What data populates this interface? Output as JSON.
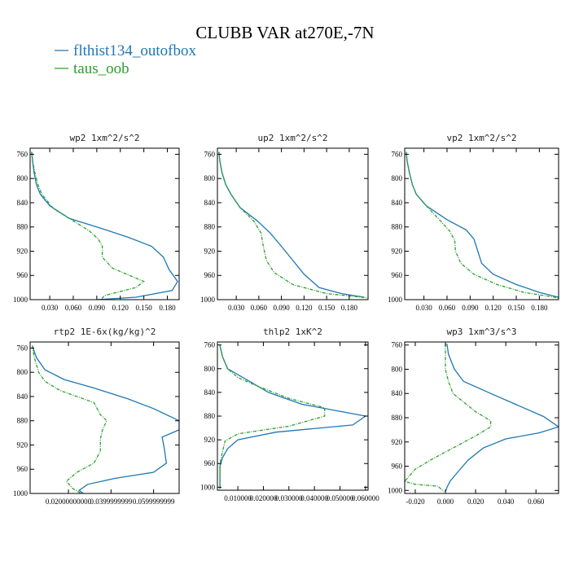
{
  "figure": {
    "title": "CLUBB VAR at270E,-7N",
    "legend": [
      {
        "label": "flthist134_outofbox",
        "color": "#1f77b4",
        "dash": "solid"
      },
      {
        "label": "taus_oob",
        "color": "#2ca02c",
        "dash": "dashed"
      }
    ]
  },
  "chart_data": [
    {
      "type": "line",
      "title": "wp2  1xm^2/s^2",
      "xlim": [
        0.005,
        0.195
      ],
      "ylim": [
        750,
        1000
      ],
      "yinvert": true,
      "xticks": [
        0.03,
        0.06,
        0.09,
        0.12,
        0.15,
        0.18
      ],
      "xtick_labels": [
        "0.030",
        "0.060",
        "0.090",
        "0.120",
        "0.150",
        "0.180"
      ],
      "yticks": [
        760,
        800,
        840,
        880,
        920,
        960,
        1000
      ],
      "ytick_labels": [
        "760",
        "800",
        "840",
        "880",
        "920",
        "960",
        "1000"
      ],
      "series": [
        {
          "name": "flthist134_outofbox",
          "color": "#1f77b4",
          "dash": "solid",
          "points": [
            [
              0.007,
              756
            ],
            [
              0.008,
              770
            ],
            [
              0.01,
              790
            ],
            [
              0.013,
              810
            ],
            [
              0.018,
              826
            ],
            [
              0.03,
              845
            ],
            [
              0.055,
              866
            ],
            [
              0.095,
              882
            ],
            [
              0.13,
              897
            ],
            [
              0.16,
              912
            ],
            [
              0.175,
              930
            ],
            [
              0.182,
              950
            ],
            [
              0.193,
              970
            ],
            [
              0.186,
              985
            ],
            [
              0.14,
              996
            ],
            [
              0.09,
              1000
            ]
          ]
        },
        {
          "name": "taus_oob",
          "color": "#2ca02c",
          "dash": "dashed",
          "points": [
            [
              0.007,
              756
            ],
            [
              0.008,
              770
            ],
            [
              0.011,
              790
            ],
            [
              0.015,
              810
            ],
            [
              0.02,
              826
            ],
            [
              0.035,
              850
            ],
            [
              0.06,
              870
            ],
            [
              0.08,
              886
            ],
            [
              0.092,
              900
            ],
            [
              0.097,
              912
            ],
            [
              0.097,
              930
            ],
            [
              0.11,
              948
            ],
            [
              0.15,
              970
            ],
            [
              0.14,
              980
            ],
            [
              0.1,
              993
            ],
            [
              0.095,
              1000
            ]
          ]
        }
      ]
    },
    {
      "type": "line",
      "title": "up2  1xm^2/s^2",
      "xlim": [
        0.005,
        0.205
      ],
      "ylim": [
        750,
        1000
      ],
      "yinvert": true,
      "xticks": [
        0.03,
        0.06,
        0.09,
        0.12,
        0.15,
        0.18
      ],
      "xtick_labels": [
        "0.030",
        "0.060",
        "0.090",
        "0.120",
        "0.150",
        "0.180"
      ],
      "yticks": [
        760,
        800,
        840,
        880,
        920,
        960,
        1000
      ],
      "ytick_labels": [
        "760",
        "800",
        "840",
        "880",
        "920",
        "960",
        "1000"
      ],
      "series": [
        {
          "name": "flthist134_outofbox",
          "color": "#1f77b4",
          "dash": "solid",
          "points": [
            [
              0.007,
              756
            ],
            [
              0.008,
              770
            ],
            [
              0.011,
              790
            ],
            [
              0.016,
              810
            ],
            [
              0.023,
              826
            ],
            [
              0.035,
              848
            ],
            [
              0.058,
              870
            ],
            [
              0.075,
              890
            ],
            [
              0.09,
              912
            ],
            [
              0.105,
              935
            ],
            [
              0.12,
              958
            ],
            [
              0.14,
              980
            ],
            [
              0.17,
              990
            ],
            [
              0.2,
              996
            ]
          ]
        },
        {
          "name": "taus_oob",
          "color": "#2ca02c",
          "dash": "dashed",
          "points": [
            [
              0.007,
              756
            ],
            [
              0.008,
              770
            ],
            [
              0.011,
              790
            ],
            [
              0.016,
              810
            ],
            [
              0.023,
              826
            ],
            [
              0.035,
              848
            ],
            [
              0.053,
              870
            ],
            [
              0.063,
              890
            ],
            [
              0.066,
              912
            ],
            [
              0.07,
              935
            ],
            [
              0.08,
              955
            ],
            [
              0.105,
              975
            ],
            [
              0.15,
              990
            ],
            [
              0.205,
              997
            ]
          ]
        }
      ]
    },
    {
      "type": "line",
      "title": "vp2  1xm^2/s^2",
      "xlim": [
        0.005,
        0.205
      ],
      "ylim": [
        750,
        1000
      ],
      "yinvert": true,
      "xticks": [
        0.03,
        0.06,
        0.09,
        0.12,
        0.15,
        0.18
      ],
      "xtick_labels": [
        "0.030",
        "0.060",
        "0.090",
        "0.120",
        "0.150",
        "0.180"
      ],
      "yticks": [
        760,
        800,
        840,
        880,
        920,
        960,
        1000
      ],
      "ytick_labels": [
        "760",
        "800",
        "840",
        "880",
        "920",
        "960",
        "1000"
      ],
      "series": [
        {
          "name": "flthist134_outofbox",
          "color": "#1f77b4",
          "dash": "solid",
          "points": [
            [
              0.007,
              756
            ],
            [
              0.008,
              770
            ],
            [
              0.011,
              790
            ],
            [
              0.015,
              810
            ],
            [
              0.02,
              826
            ],
            [
              0.033,
              845
            ],
            [
              0.06,
              868
            ],
            [
              0.085,
              885
            ],
            [
              0.095,
              900
            ],
            [
              0.1,
              920
            ],
            [
              0.105,
              940
            ],
            [
              0.12,
              958
            ],
            [
              0.15,
              975
            ],
            [
              0.18,
              988
            ],
            [
              0.205,
              996
            ]
          ]
        },
        {
          "name": "taus_oob",
          "color": "#2ca02c",
          "dash": "dashed",
          "points": [
            [
              0.007,
              756
            ],
            [
              0.008,
              770
            ],
            [
              0.011,
              790
            ],
            [
              0.015,
              810
            ],
            [
              0.02,
              826
            ],
            [
              0.033,
              845
            ],
            [
              0.05,
              868
            ],
            [
              0.063,
              886
            ],
            [
              0.07,
              902
            ],
            [
              0.071,
              920
            ],
            [
              0.078,
              940
            ],
            [
              0.095,
              958
            ],
            [
              0.125,
              975
            ],
            [
              0.16,
              988
            ],
            [
              0.205,
              997
            ]
          ]
        }
      ]
    },
    {
      "type": "line",
      "title": "rtp2  1E-6x(kg/kg)^2",
      "xlim": [
        0.002,
        0.072
      ],
      "ylim": [
        750,
        1000
      ],
      "yinvert": true,
      "xticks": [
        0.02,
        0.04,
        0.06
      ],
      "xtick_labels": [
        "0.02000000000",
        "0.0399999999",
        "0.0599999999"
      ],
      "yticks": [
        760,
        800,
        840,
        880,
        920,
        960,
        1000
      ],
      "ytick_labels": [
        "760",
        "800",
        "840",
        "880",
        "920",
        "960",
        "1000"
      ],
      "series": [
        {
          "name": "flthist134_outofbox",
          "color": "#1f77b4",
          "dash": "solid",
          "points": [
            [
              0.003,
              756
            ],
            [
              0.005,
              776
            ],
            [
              0.009,
              796
            ],
            [
              0.018,
              812
            ],
            [
              0.032,
              826
            ],
            [
              0.048,
              844
            ],
            [
              0.06,
              860
            ],
            [
              0.072,
              880
            ],
            [
              0.072,
              895
            ],
            [
              0.064,
              907
            ],
            [
              0.065,
              925
            ],
            [
              0.066,
              950
            ],
            [
              0.06,
              965
            ],
            [
              0.042,
              975
            ],
            [
              0.029,
              985
            ],
            [
              0.025,
              995
            ],
            [
              0.027,
              1000
            ]
          ]
        },
        {
          "name": "taus_oob",
          "color": "#2ca02c",
          "dash": "dashed",
          "points": [
            [
              0.003,
              756
            ],
            [
              0.004,
              776
            ],
            [
              0.006,
              800
            ],
            [
              0.009,
              815
            ],
            [
              0.016,
              830
            ],
            [
              0.032,
              850
            ],
            [
              0.035,
              870
            ],
            [
              0.038,
              880
            ],
            [
              0.036,
              895
            ],
            [
              0.035,
              910
            ],
            [
              0.035,
              930
            ],
            [
              0.032,
              950
            ],
            [
              0.024,
              965
            ],
            [
              0.019,
              980
            ],
            [
              0.022,
              992
            ],
            [
              0.026,
              1000
            ]
          ]
        }
      ]
    },
    {
      "type": "line",
      "title": "thlp2  1xK^2",
      "xlim": [
        0.002,
        0.061
      ],
      "ylim": [
        755,
        1005
      ],
      "yinvert": true,
      "xticks": [
        0.01,
        0.02,
        0.03,
        0.04,
        0.05,
        0.06
      ],
      "xtick_labels": [
        "0.010000",
        "0.020000",
        "0.030000",
        "0.040000",
        "0.050000",
        "0.060000"
      ],
      "yticks": [
        760,
        800,
        840,
        880,
        920,
        960,
        1000
      ],
      "ytick_labels": [
        "760",
        "800",
        "840",
        "880",
        "920",
        "960",
        "1000"
      ],
      "series": [
        {
          "name": "flthist134_outofbox",
          "color": "#1f77b4",
          "dash": "solid",
          "points": [
            [
              0.003,
              761
            ],
            [
              0.004,
              780
            ],
            [
              0.006,
              800
            ],
            [
              0.012,
              815
            ],
            [
              0.022,
              840
            ],
            [
              0.035,
              860
            ],
            [
              0.06,
              880
            ],
            [
              0.055,
              895
            ],
            [
              0.025,
              907
            ],
            [
              0.01,
              920
            ],
            [
              0.006,
              935
            ],
            [
              0.004,
              950
            ],
            [
              0.003,
              965
            ],
            [
              0.003,
              980
            ],
            [
              0.003,
              1003
            ]
          ]
        },
        {
          "name": "taus_oob",
          "color": "#2ca02c",
          "dash": "dashed",
          "points": [
            [
              0.003,
              761
            ],
            [
              0.004,
              780
            ],
            [
              0.006,
              800
            ],
            [
              0.01,
              815
            ],
            [
              0.018,
              830
            ],
            [
              0.03,
              850
            ],
            [
              0.044,
              866
            ],
            [
              0.044,
              880
            ],
            [
              0.03,
              897
            ],
            [
              0.01,
              910
            ],
            [
              0.005,
              922
            ],
            [
              0.004,
              940
            ],
            [
              0.003,
              960
            ],
            [
              0.003,
              975
            ],
            [
              0.003,
              990
            ],
            [
              0.003,
              1003
            ]
          ]
        }
      ]
    },
    {
      "type": "line",
      "title": "wp3  1xm^3/s^3",
      "xlim": [
        -0.027,
        0.075
      ],
      "ylim": [
        755,
        1005
      ],
      "yinvert": true,
      "xticks": [
        -0.02,
        0.0,
        0.02,
        0.04,
        0.06
      ],
      "xtick_labels": [
        "-0.020",
        "0.000",
        "0.020",
        "0.040",
        "0.060"
      ],
      "yticks": [
        760,
        800,
        840,
        880,
        920,
        960,
        1000
      ],
      "ytick_labels": [
        "760",
        "800",
        "840",
        "880",
        "920",
        "960",
        "1000"
      ],
      "series": [
        {
          "name": "flthist134_outofbox",
          "color": "#1f77b4",
          "dash": "solid",
          "points": [
            [
              0.001,
              758
            ],
            [
              0.002,
              775
            ],
            [
              0.006,
              800
            ],
            [
              0.012,
              820
            ],
            [
              0.03,
              840
            ],
            [
              0.065,
              878
            ],
            [
              0.075,
              895
            ],
            [
              0.062,
              905
            ],
            [
              0.04,
              915
            ],
            [
              0.025,
              930
            ],
            [
              0.015,
              950
            ],
            [
              0.008,
              970
            ],
            [
              0.003,
              985
            ],
            [
              0.001,
              995
            ],
            [
              0.0,
              1002
            ]
          ]
        },
        {
          "name": "taus_oob",
          "color": "#2ca02c",
          "dash": "dashed",
          "points": [
            [
              0.0,
              758
            ],
            [
              0.0,
              780
            ],
            [
              0.0,
              800
            ],
            [
              0.002,
              820
            ],
            [
              0.005,
              840
            ],
            [
              0.02,
              870
            ],
            [
              0.03,
              885
            ],
            [
              0.03,
              895
            ],
            [
              0.02,
              910
            ],
            [
              0.005,
              930
            ],
            [
              -0.01,
              950
            ],
            [
              -0.02,
              965
            ],
            [
              -0.027,
              985
            ],
            [
              -0.02,
              990
            ],
            [
              -0.005,
              993
            ],
            [
              -0.001,
              1002
            ]
          ]
        }
      ]
    }
  ]
}
